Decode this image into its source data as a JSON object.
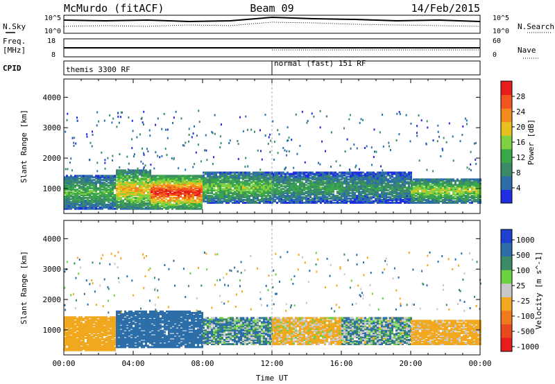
{
  "header": {
    "station": "McMurdo (fitACF)",
    "beam": "Beam 09",
    "date": "14/Feb/2015"
  },
  "noise_panel": {
    "left_label": "N.Sky",
    "right_label": "N.Search",
    "left_ticks": [
      "10^5",
      "10^0"
    ],
    "right_ticks": [
      "10^5",
      "10^0"
    ]
  },
  "freq_panel": {
    "left_label_1": "Freq.",
    "left_label_2": "[MHz]",
    "left_ticks": [
      "18",
      "8"
    ],
    "right_label": "Nave",
    "right_ticks": [
      "60",
      "0"
    ]
  },
  "cpid_panel": {
    "label": "CPID",
    "segments": [
      {
        "name": "themis 3300 RF",
        "start_h": 0,
        "end_h": 12
      },
      {
        "name": "normal (fast) 151 RF",
        "start_h": 12,
        "end_h": 24
      }
    ]
  },
  "colors": {
    "power_scale": [
      "#1f2ee0",
      "#2d6ea8",
      "#3a8a68",
      "#3aa84a",
      "#7fd13f",
      "#e8c020",
      "#f28a1e",
      "#f2561e",
      "#e81e1e"
    ],
    "velocity_scale": [
      "#1f3fd0",
      "#2d6ea8",
      "#3a8a68",
      "#6ad13f",
      "#c8c8c8",
      "#f2a81e",
      "#f27a1e",
      "#e84a1e",
      "#e81e1e"
    ]
  },
  "chart_data": [
    {
      "type": "heatmap",
      "name": "power",
      "xlabel": "",
      "ylabel": "Slant Range [km]",
      "xlim": [
        0,
        24
      ],
      "ylim": [
        180,
        4600
      ],
      "y_ticks": [
        1000,
        2000,
        3000,
        4000
      ],
      "colorbar": {
        "label": "Power [dB]",
        "tick_labels": [
          "4",
          "8",
          "12",
          "16",
          "20",
          "24",
          "28"
        ],
        "range": [
          0,
          32
        ]
      },
      "echo_bands": [
        {
          "t0": 0,
          "t1": 3,
          "low": 300,
          "high": 1400,
          "value": 14
        },
        {
          "t0": 3,
          "t1": 5,
          "low": 300,
          "high": 1600,
          "value": 22
        },
        {
          "t0": 5,
          "t1": 8,
          "low": 300,
          "high": 1400,
          "value": 30
        },
        {
          "t0": 8,
          "t1": 12,
          "low": 500,
          "high": 1500,
          "value": 16
        },
        {
          "t0": 12,
          "t1": 16,
          "low": 500,
          "high": 1500,
          "value": 12
        },
        {
          "t0": 16,
          "t1": 20,
          "low": 500,
          "high": 1500,
          "value": 10
        },
        {
          "t0": 20,
          "t1": 24,
          "low": 500,
          "high": 1300,
          "value": 18
        }
      ]
    },
    {
      "type": "heatmap",
      "name": "velocity",
      "xlabel": "Time UT",
      "ylabel": "Slant Range [km]",
      "xlim": [
        0,
        24
      ],
      "ylim": [
        180,
        4600
      ],
      "x_ticks": [
        "00:00",
        "04:00",
        "08:00",
        "12:00",
        "16:00",
        "20:00",
        "00:00"
      ],
      "y_ticks": [
        1000,
        2000,
        3000,
        4000
      ],
      "colorbar": {
        "label": "Velocity [m s^-1]",
        "tick_labels": [
          "1000",
          "500",
          "100",
          "25",
          "-25",
          "-100",
          "-500",
          "-1000"
        ]
      },
      "echo_bands": [
        {
          "t0": 0,
          "t1": 3,
          "low": 300,
          "high": 1400,
          "value": -300
        },
        {
          "t0": 3,
          "t1": 8,
          "low": 400,
          "high": 1600,
          "value": 250
        },
        {
          "t0": 8,
          "t1": 12,
          "low": 500,
          "high": 1400,
          "value": 60
        },
        {
          "t0": 12,
          "t1": 16,
          "low": 500,
          "high": 1400,
          "value": -150
        },
        {
          "t0": 16,
          "t1": 20,
          "low": 500,
          "high": 1400,
          "value": 40
        },
        {
          "t0": 20,
          "t1": 24,
          "low": 500,
          "high": 1300,
          "value": -200
        }
      ]
    }
  ]
}
